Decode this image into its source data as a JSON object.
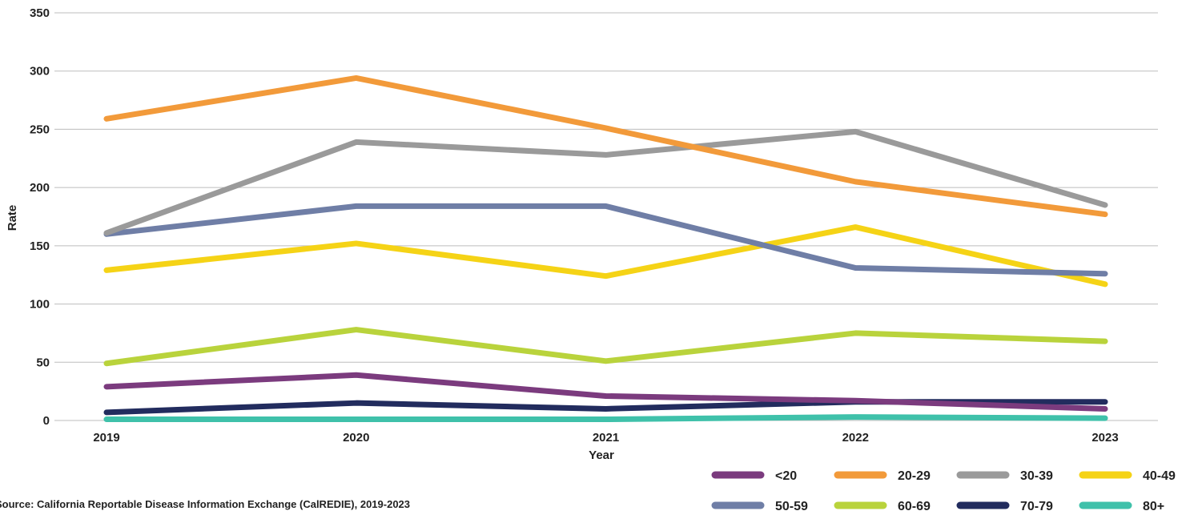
{
  "chart_data": {
    "type": "line",
    "title": "",
    "xlabel": "Year",
    "ylabel": "Rate",
    "ylim": [
      0,
      350
    ],
    "yticks": [
      0,
      50,
      100,
      150,
      200,
      250,
      300,
      350
    ],
    "grid": true,
    "legend_position": "bottom-right",
    "categories": [
      "2019",
      "2020",
      "2021",
      "2022",
      "2023"
    ],
    "series": [
      {
        "name": "<20",
        "color": "#7b3b7e",
        "values": [
          29,
          39,
          21,
          17,
          10
        ]
      },
      {
        "name": "20-29",
        "color": "#f29a3a",
        "values": [
          259,
          294,
          251,
          205,
          177
        ]
      },
      {
        "name": "30-39",
        "color": "#9a9a9a",
        "values": [
          161,
          239,
          228,
          248,
          185
        ]
      },
      {
        "name": "40-49",
        "color": "#f5d316",
        "values": [
          129,
          152,
          124,
          166,
          117
        ]
      },
      {
        "name": "50-59",
        "color": "#6f7ea6",
        "values": [
          160,
          184,
          184,
          131,
          126
        ]
      },
      {
        "name": "60-69",
        "color": "#b9d33c",
        "values": [
          49,
          78,
          51,
          75,
          68
        ]
      },
      {
        "name": "70-79",
        "color": "#222c5e",
        "values": [
          7,
          15,
          10,
          16,
          16
        ]
      },
      {
        "name": "80+",
        "color": "#3fc1aa",
        "values": [
          1,
          1,
          1,
          3,
          2
        ]
      }
    ]
  },
  "source": {
    "label": "Source:",
    "text": "California Reportable Disease Information Exchange (CalREDIE), 2019-2023"
  }
}
